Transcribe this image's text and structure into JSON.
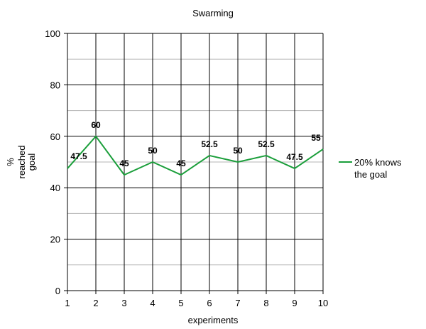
{
  "chart_data": {
    "type": "line",
    "title": "Swarming",
    "xlabel": "experiments",
    "ylabel_lines": [
      "%",
      "reached",
      "goal"
    ],
    "x": [
      1,
      2,
      3,
      4,
      5,
      6,
      7,
      8,
      9,
      10
    ],
    "series": [
      {
        "name": "20% knows the goal",
        "legend_lines": [
          "20% knows",
          "the goal"
        ],
        "values": [
          47.5,
          60,
          45,
          50,
          45,
          52.5,
          50,
          52.5,
          47.5,
          55
        ],
        "labels": [
          "47.5",
          "60",
          "45",
          "50",
          "45",
          "52.5",
          "50",
          "52.5",
          "47.5",
          "55"
        ],
        "color": "#1a9e3a"
      }
    ],
    "xlim": [
      1,
      10
    ],
    "ylim": [
      0,
      100
    ],
    "yticks": [
      0,
      20,
      40,
      60,
      80,
      100
    ],
    "ytick_labels": [
      "0",
      "20",
      "40",
      "60",
      "80",
      "100"
    ],
    "xtick_labels": [
      "1",
      "2",
      "3",
      "4",
      "5",
      "6",
      "7",
      "8",
      "9",
      "10"
    ],
    "grid": true,
    "legend_position": "right"
  }
}
